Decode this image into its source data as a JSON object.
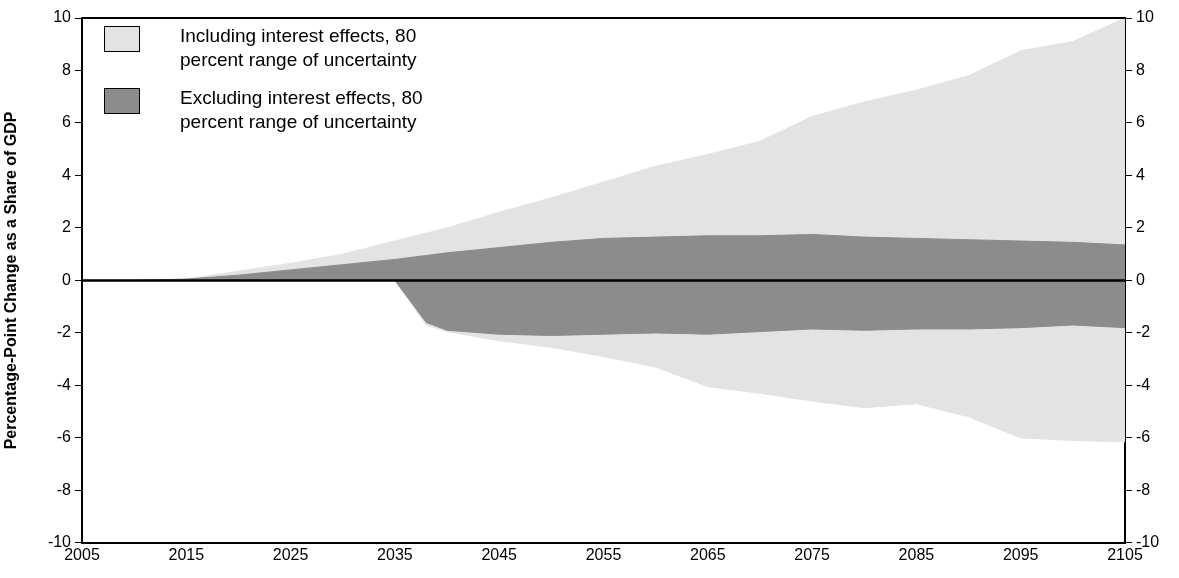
{
  "chart_data": {
    "type": "area",
    "ylabel": "Percentage-Point Change as a Share of GDP",
    "x": [
      2005,
      2010,
      2015,
      2020,
      2025,
      2030,
      2035,
      2038,
      2040,
      2045,
      2050,
      2055,
      2060,
      2065,
      2070,
      2075,
      2080,
      2085,
      2090,
      2095,
      2100,
      2105
    ],
    "series": [
      {
        "name": "Including interest effects, 80 percent range of uncertainty",
        "color": "#e3e3e3",
        "values": [
          0,
          0,
          0.05,
          0.35,
          0.65,
          1.0,
          1.5,
          1.8,
          2.0,
          2.6,
          3.15,
          3.75,
          4.35,
          4.8,
          5.3,
          6.25,
          6.8,
          7.25,
          7.8,
          8.75,
          9.1,
          10.0
        ]
      },
      {
        "color": "#e3e3e3",
        "values": [
          0,
          0,
          0,
          0,
          0,
          0,
          0,
          -1.7,
          -1.95,
          -2.3,
          -2.55,
          -2.9,
          -3.3,
          -4.05,
          -4.3,
          -4.6,
          -4.85,
          -4.7,
          -5.2,
          -6.0,
          -6.1,
          -6.15
        ]
      },
      {
        "name": "Excluding interest effects, 80 percent range of uncertainty",
        "color": "#8c8c8c",
        "values": [
          0,
          0,
          0.05,
          0.2,
          0.4,
          0.6,
          0.8,
          0.95,
          1.05,
          1.25,
          1.45,
          1.6,
          1.65,
          1.7,
          1.7,
          1.75,
          1.65,
          1.6,
          1.55,
          1.5,
          1.45,
          1.35
        ]
      },
      {
        "color": "#8c8c8c",
        "values": [
          0,
          0,
          0,
          0,
          0,
          0,
          0,
          -1.6,
          -1.9,
          -2.05,
          -2.1,
          -2.05,
          -2.0,
          -2.05,
          -1.95,
          -1.85,
          -1.9,
          -1.85,
          -1.85,
          -1.8,
          -1.7,
          -1.8
        ]
      }
    ],
    "ref_lines": [
      {
        "axis": "y",
        "value": 0,
        "color": "#000000"
      }
    ],
    "xlim": [
      2005,
      2105
    ],
    "xticks": [
      2005,
      2015,
      2025,
      2035,
      2045,
      2055,
      2065,
      2075,
      2085,
      2095,
      2105
    ],
    "ylim": [
      -10,
      10
    ],
    "yticks": [
      -10,
      -8,
      -6,
      -4,
      -2,
      0,
      2,
      4,
      6,
      8,
      10
    ],
    "y2lim": [
      -10,
      10
    ],
    "y2ticks": [
      -10,
      -8,
      -6,
      -4,
      -2,
      0,
      2,
      4,
      6,
      8,
      10
    ],
    "grid": false,
    "legend": "top left",
    "marker": "none",
    "line_style": "solid"
  }
}
